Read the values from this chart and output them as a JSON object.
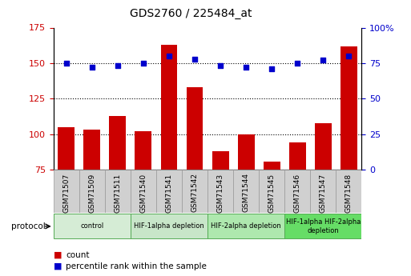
{
  "title": "GDS2760 / 225484_at",
  "categories": [
    "GSM71507",
    "GSM71509",
    "GSM71511",
    "GSM71540",
    "GSM71541",
    "GSM71542",
    "GSM71543",
    "GSM71544",
    "GSM71545",
    "GSM71546",
    "GSM71547",
    "GSM71548"
  ],
  "counts": [
    105,
    103,
    113,
    102,
    163,
    133,
    88,
    100,
    81,
    94,
    108,
    162
  ],
  "percentile_ranks": [
    75,
    72,
    73,
    75,
    80,
    78,
    73,
    72,
    71,
    75,
    77,
    80
  ],
  "ylim": [
    75,
    175
  ],
  "y2lim": [
    0,
    100
  ],
  "yticks": [
    75,
    100,
    125,
    150,
    175
  ],
  "y2ticks": [
    0,
    25,
    50,
    75,
    100
  ],
  "dotted_lines": [
    100,
    125,
    150
  ],
  "bar_color": "#cc0000",
  "dot_color": "#0000cc",
  "protocol_groups": [
    {
      "label": "control",
      "start": 0,
      "end": 2,
      "color": "#d5ecd5"
    },
    {
      "label": "HIF-1alpha depletion",
      "start": 3,
      "end": 5,
      "color": "#c8e6c9"
    },
    {
      "label": "HIF-2alpha depletion",
      "start": 6,
      "end": 8,
      "color": "#aee8ae"
    },
    {
      "label": "HIF-1alpha HIF-2alpha\ndepletion",
      "start": 9,
      "end": 11,
      "color": "#66dd66"
    }
  ],
  "legend_items": [
    {
      "label": "count",
      "color": "#cc0000"
    },
    {
      "label": "percentile rank within the sample",
      "color": "#0000cc"
    }
  ],
  "protocol_label": "protocol",
  "bar_width": 0.65,
  "xlabel_bg": "#d0d0d0"
}
